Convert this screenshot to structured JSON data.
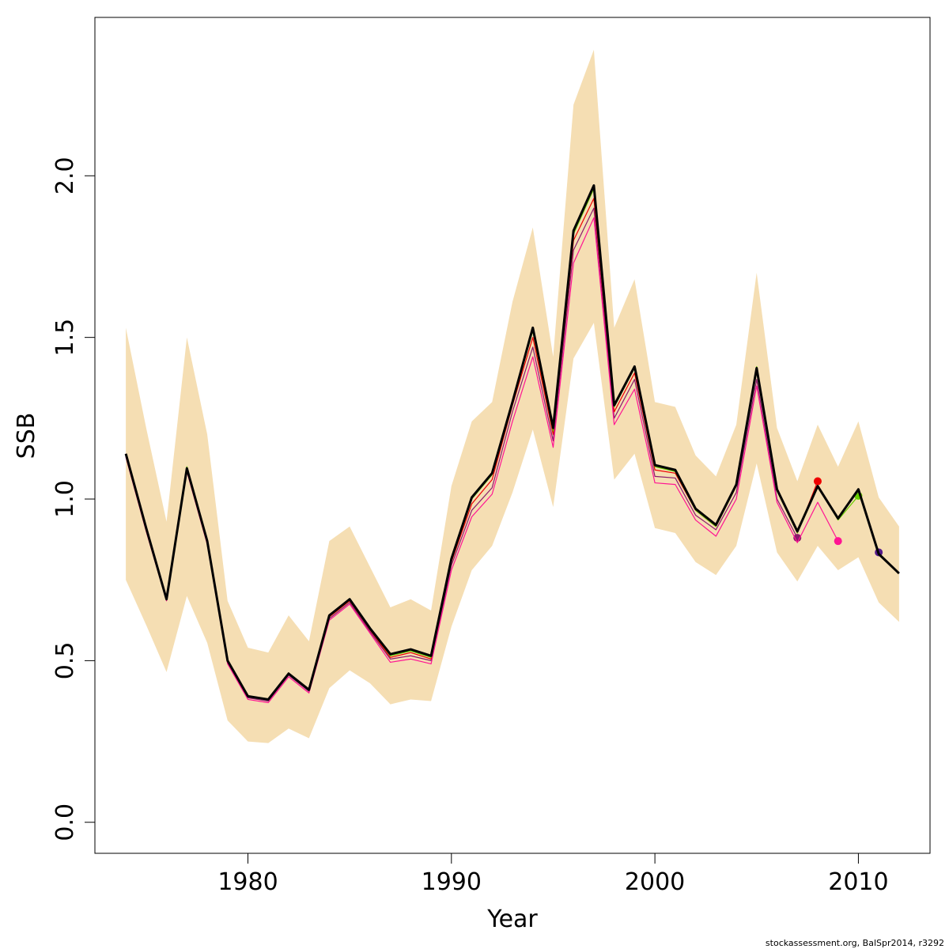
{
  "chart_data": {
    "type": "line",
    "xlabel": "Year",
    "ylabel": "SSB",
    "footer": "stockassessment.org, BalSpr2014, r3292",
    "x": [
      1974,
      1975,
      1976,
      1977,
      1978,
      1979,
      1980,
      1981,
      1982,
      1983,
      1984,
      1985,
      1986,
      1987,
      1988,
      1989,
      1990,
      1991,
      1992,
      1993,
      1994,
      1995,
      1996,
      1997,
      1998,
      1999,
      2000,
      2001,
      2002,
      2003,
      2004,
      2005,
      2006,
      2007,
      2008,
      2009,
      2010,
      2011,
      2012
    ],
    "band": {
      "color": "#f5deb3",
      "upper": [
        1.53,
        1.22,
        0.93,
        1.5,
        1.2,
        0.685,
        0.54,
        0.525,
        0.64,
        0.56,
        0.87,
        0.915,
        0.79,
        0.665,
        0.69,
        0.655,
        1.04,
        1.24,
        1.3,
        1.61,
        1.84,
        1.44,
        2.22,
        2.39,
        1.53,
        1.68,
        1.3,
        1.285,
        1.135,
        1.07,
        1.23,
        1.7,
        1.22,
        1.055,
        1.23,
        1.1,
        1.24,
        1.005,
        0.915
      ],
      "lower": [
        0.75,
        0.61,
        0.465,
        0.7,
        0.555,
        0.315,
        0.25,
        0.245,
        0.29,
        0.26,
        0.415,
        0.47,
        0.43,
        0.365,
        0.38,
        0.375,
        0.605,
        0.78,
        0.855,
        1.02,
        1.215,
        0.975,
        1.435,
        1.545,
        1.06,
        1.14,
        0.91,
        0.895,
        0.805,
        0.765,
        0.855,
        1.11,
        0.835,
        0.745,
        0.855,
        0.78,
        0.82,
        0.68,
        0.62
      ]
    },
    "series": [
      {
        "color": "#8b1a6b",
        "values": [
          1.135,
          0.905,
          0.69,
          1.09,
          0.865,
          0.495,
          0.385,
          0.375,
          0.455,
          0.405,
          0.63,
          0.68,
          0.59,
          0.505,
          0.515,
          0.5,
          0.795,
          0.965,
          1.035,
          1.27,
          1.47,
          1.18,
          1.77,
          1.9,
          1.25,
          1.37,
          1.07,
          1.065,
          0.95,
          0.905,
          1.02,
          1.37,
          1.0,
          0.88,
          null,
          null,
          null,
          null,
          null
        ]
      },
      {
        "color": "#ee0000",
        "values": [
          1.14,
          0.91,
          0.69,
          1.095,
          0.87,
          0.5,
          0.39,
          0.38,
          0.46,
          0.41,
          0.635,
          0.685,
          0.595,
          0.51,
          0.525,
          0.505,
          0.805,
          0.985,
          1.06,
          1.29,
          1.5,
          1.2,
          1.8,
          1.93,
          1.27,
          1.39,
          1.09,
          1.08,
          0.965,
          0.915,
          1.04,
          1.4,
          1.025,
          0.895,
          1.055,
          null,
          null,
          null,
          null
        ]
      },
      {
        "color": "#ff1493",
        "values": [
          1.13,
          0.9,
          0.685,
          1.085,
          0.86,
          0.49,
          0.38,
          0.37,
          0.45,
          0.4,
          0.625,
          0.675,
          0.585,
          0.495,
          0.505,
          0.49,
          0.78,
          0.945,
          1.015,
          1.24,
          1.44,
          1.16,
          1.73,
          1.87,
          1.23,
          1.34,
          1.05,
          1.045,
          0.935,
          0.885,
          1.0,
          1.35,
          0.99,
          0.865,
          0.99,
          0.87,
          null,
          null,
          null
        ]
      },
      {
        "color": "#66cc00",
        "values": [
          1.14,
          0.91,
          0.69,
          1.1,
          0.87,
          0.5,
          0.39,
          0.38,
          0.46,
          0.41,
          0.64,
          0.69,
          0.6,
          0.515,
          0.53,
          0.51,
          0.81,
          1.0,
          1.075,
          1.3,
          1.52,
          1.21,
          1.82,
          1.96,
          1.285,
          1.405,
          1.1,
          1.085,
          0.965,
          0.915,
          1.04,
          1.41,
          1.025,
          0.895,
          1.04,
          0.935,
          1.01,
          null,
          null
        ]
      },
      {
        "color": "#551a8b",
        "values": [
          1.14,
          0.91,
          0.69,
          1.095,
          0.87,
          0.5,
          0.39,
          0.38,
          0.46,
          0.41,
          0.64,
          0.69,
          0.6,
          0.52,
          0.535,
          0.515,
          0.815,
          1.005,
          1.08,
          1.3,
          1.53,
          1.22,
          1.83,
          1.97,
          1.29,
          1.41,
          1.105,
          1.09,
          0.97,
          0.92,
          1.045,
          1.405,
          1.03,
          0.9,
          1.04,
          0.94,
          1.025,
          0.835,
          null
        ]
      },
      {
        "color": "#000000",
        "main": true,
        "values": [
          1.14,
          0.91,
          0.69,
          1.095,
          0.87,
          0.5,
          0.39,
          0.38,
          0.46,
          0.41,
          0.64,
          0.69,
          0.6,
          0.52,
          0.535,
          0.515,
          0.815,
          1.005,
          1.08,
          1.3,
          1.53,
          1.22,
          1.83,
          1.97,
          1.29,
          1.41,
          1.105,
          1.09,
          0.97,
          0.92,
          1.045,
          1.405,
          1.03,
          0.9,
          1.04,
          0.94,
          1.03,
          0.83,
          0.77
        ]
      }
    ],
    "xlim": [
      1972.48,
      2013.52
    ],
    "ylim": [
      -0.096,
      2.49
    ],
    "xticks": [
      1980,
      1990,
      2000,
      2010
    ],
    "yticks": [
      {
        "value": 0,
        "label": "0.0"
      },
      0.5,
      {
        "value": 1,
        "label": "1.0"
      },
      1.5,
      {
        "value": 2,
        "label": "2.0"
      }
    ]
  }
}
